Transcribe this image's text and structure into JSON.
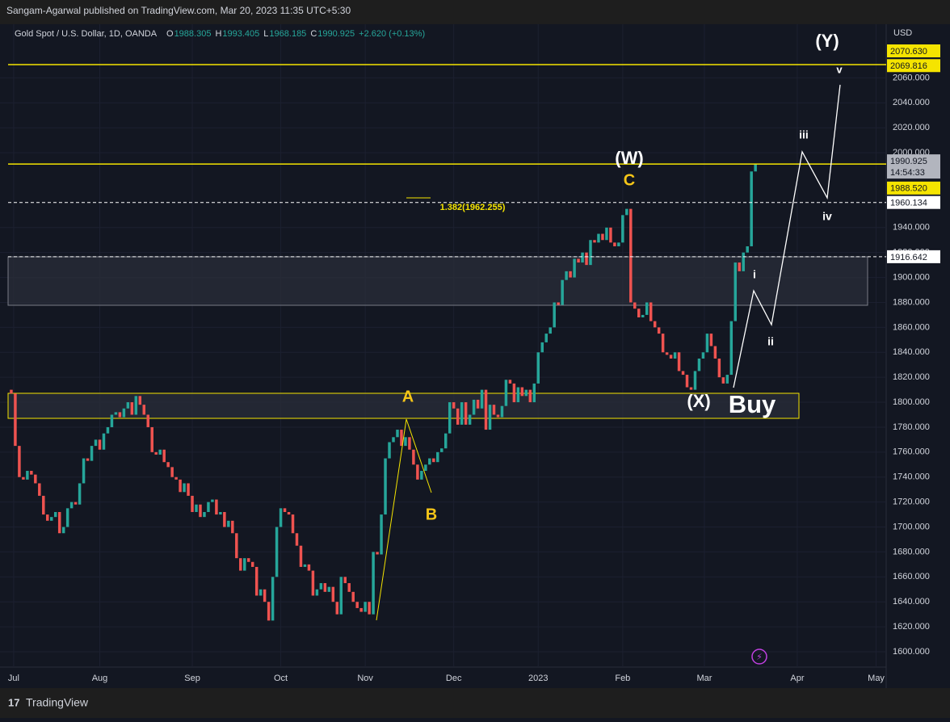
{
  "header": {
    "publisher": "Sangam-Agarwal published on TradingView.com, Mar 20, 2023 11:35 UTC+5:30"
  },
  "footer": {
    "brand": "TradingView"
  },
  "chart_data": {
    "type": "candlestick",
    "symbol": "Gold Spot / U.S. Dollar, 1D, OANDA",
    "ohlc": [
      {
        "label": "O",
        "value": 1988.305
      },
      {
        "label": "H",
        "value": 1993.405
      },
      {
        "label": "L",
        "value": 1968.185
      },
      {
        "label": "C",
        "value": 1990.925
      }
    ],
    "change": "+2.620 (+0.13%)",
    "currency": "USD",
    "up_color": "#26a69a",
    "down_color": "#ef5350",
    "grid": true,
    "first_open": 1810,
    "closes": [
      1807,
      1765,
      1740,
      1738,
      1745,
      1742,
      1735,
      1725,
      1710,
      1705,
      1708,
      1712,
      1695,
      1700,
      1715,
      1720,
      1718,
      1735,
      1755,
      1753,
      1765,
      1770,
      1762,
      1775,
      1780,
      1790,
      1792,
      1788,
      1795,
      1800,
      1790,
      1805,
      1798,
      1790,
      1780,
      1760,
      1758,
      1762,
      1752,
      1748,
      1740,
      1738,
      1728,
      1735,
      1725,
      1712,
      1718,
      1708,
      1712,
      1720,
      1722,
      1710,
      1712,
      1700,
      1705,
      1695,
      1675,
      1665,
      1675,
      1672,
      1668,
      1645,
      1650,
      1640,
      1625,
      1660,
      1700,
      1715,
      1712,
      1710,
      1695,
      1685,
      1668,
      1670,
      1665,
      1645,
      1650,
      1655,
      1648,
      1652,
      1640,
      1630,
      1660,
      1655,
      1648,
      1640,
      1635,
      1632,
      1640,
      1630,
      1680,
      1678,
      1710,
      1755,
      1768,
      1772,
      1778,
      1765,
      1772,
      1762,
      1750,
      1738,
      1745,
      1750,
      1755,
      1752,
      1760,
      1763,
      1775,
      1800,
      1795,
      1782,
      1800,
      1782,
      1790,
      1802,
      1795,
      1810,
      1778,
      1798,
      1790,
      1788,
      1797,
      1818,
      1815,
      1800,
      1812,
      1805,
      1810,
      1800,
      1815,
      1840,
      1848,
      1855,
      1860,
      1880,
      1878,
      1898,
      1905,
      1900,
      1915,
      1912,
      1920,
      1910,
      1930,
      1928,
      1935,
      1930,
      1940,
      1928,
      1925,
      1928,
      1950,
      1955,
      1880,
      1875,
      1868,
      1870,
      1880,
      1865,
      1860,
      1855,
      1840,
      1838,
      1835,
      1840,
      1825,
      1822,
      1812,
      1810,
      1825,
      1835,
      1840,
      1855,
      1845,
      1835,
      1820,
      1815,
      1822,
      1865,
      1912,
      1905,
      1920,
      1925,
      1985,
      1990.925
    ],
    "xlim": [
      -2.8,
      217.5
    ],
    "xticks": [
      {
        "value": 0.6,
        "label": "Jul"
      },
      {
        "value": 22,
        "label": "Aug"
      },
      {
        "value": 45,
        "label": "Sep"
      },
      {
        "value": 67,
        "label": "Oct"
      },
      {
        "value": 88,
        "label": "Nov"
      },
      {
        "value": 110,
        "label": "Dec"
      },
      {
        "value": 131,
        "label": "2023"
      },
      {
        "value": 152,
        "label": "Feb"
      },
      {
        "value": 172.3,
        "label": "Mar"
      },
      {
        "value": 195.4,
        "label": "Apr"
      },
      {
        "value": 215,
        "label": "May"
      }
    ],
    "ylim": [
      1587.7,
      2103
    ],
    "yticks": [
      {
        "value": 1600,
        "label": "1600.000"
      },
      {
        "value": 1620,
        "label": "1620.000"
      },
      {
        "value": 1640,
        "label": "1640.000"
      },
      {
        "value": 1660,
        "label": "1660.000"
      },
      {
        "value": 1680,
        "label": "1680.000"
      },
      {
        "value": 1700,
        "label": "1700.000"
      },
      {
        "value": 1720,
        "label": "1720.000"
      },
      {
        "value": 1740,
        "label": "1740.000"
      },
      {
        "value": 1760,
        "label": "1760.000"
      },
      {
        "value": 1780,
        "label": "1780.000"
      },
      {
        "value": 1800,
        "label": "1800.000"
      },
      {
        "value": 1820,
        "label": "1820.000"
      },
      {
        "value": 1840,
        "label": "1840.000"
      },
      {
        "value": 1860,
        "label": "1860.000"
      },
      {
        "value": 1880,
        "label": "1880.000"
      },
      {
        "value": 1900,
        "label": "1900.000"
      },
      {
        "value": 1920,
        "label": "1920.000"
      },
      {
        "value": 1940,
        "label": "1940.000"
      },
      {
        "value": 2000,
        "label": "2000.000"
      },
      {
        "value": 2020,
        "label": "2020.000"
      },
      {
        "value": 2040,
        "label": "2040.000"
      },
      {
        "value": 2060,
        "label": "2060.000"
      }
    ],
    "price_labels": [
      {
        "value": 2070.63,
        "label": "2070.630",
        "color": "#f5e400"
      },
      {
        "value": 2069.816,
        "label": "2069.816",
        "color": "#f5e400"
      },
      {
        "value": 1990.925,
        "label": "1990.925",
        "color": "#b2b5be"
      },
      {
        "value": 1990.925,
        "label": "14:54:33",
        "color": "#b2b5be"
      },
      {
        "value": 1988.52,
        "label": "1988.520",
        "color": "#f5e400"
      },
      {
        "value": 1960.134,
        "label": "1960.134",
        "color": "#ffffff"
      },
      {
        "value": 1916.642,
        "label": "1916.642",
        "color": "#ffffff"
      }
    ],
    "annotations": {
      "Y": "(Y)",
      "v": "v",
      "iii": "iii",
      "iv": "iv",
      "ii": "ii",
      "i": "i",
      "W": "(W)",
      "C": "C",
      "A": "A",
      "B": "B",
      "X": "(X)",
      "buy": "Buy",
      "fib": "1.382(1962.255)"
    }
  }
}
